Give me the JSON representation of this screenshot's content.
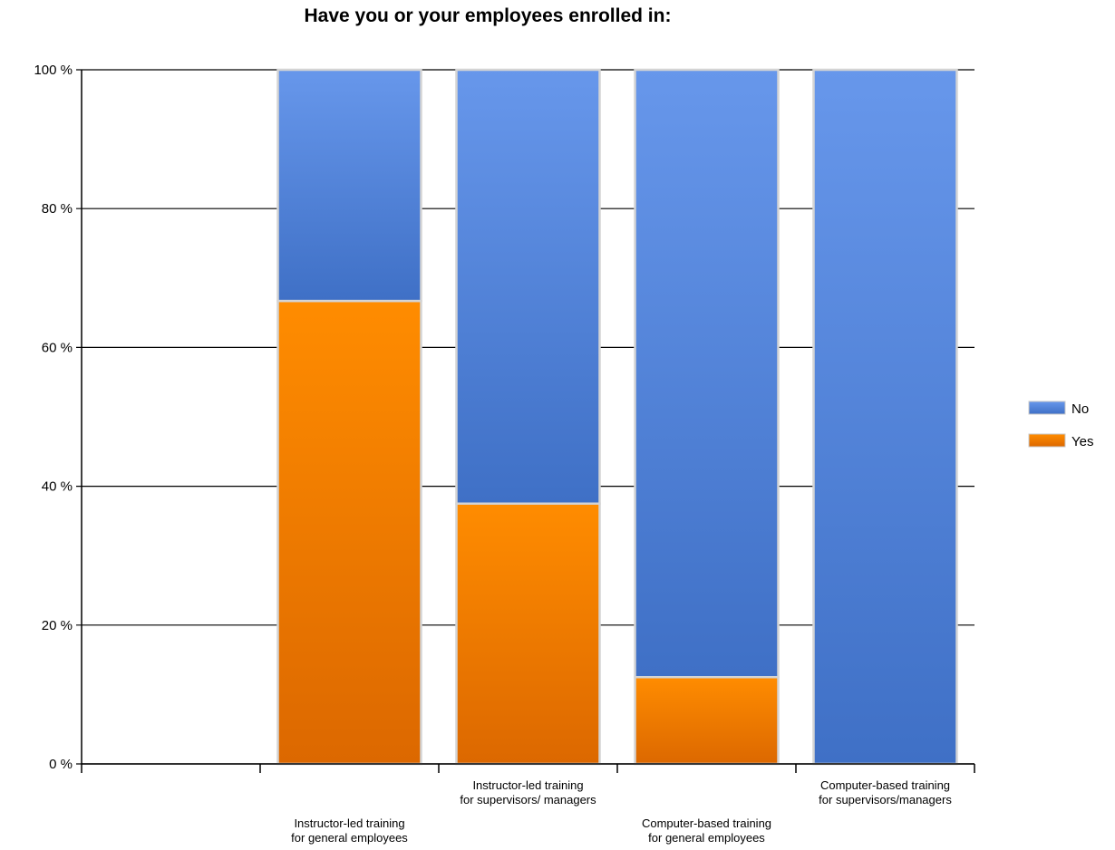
{
  "chart_data": {
    "type": "bar",
    "stacked": true,
    "title": "Have you or your employees enrolled in:",
    "xlabel": "",
    "ylabel": "",
    "ylim": [
      0,
      100
    ],
    "y_ticks": [
      0,
      20,
      40,
      60,
      80,
      100
    ],
    "y_tick_labels": [
      "0 %",
      "20 %",
      "40 %",
      "60 %",
      "80 %",
      "100 %"
    ],
    "categories": [
      [
        "Instructor-led training",
        "for general employees"
      ],
      [
        "Instructor-led training",
        "for supervisors/ managers"
      ],
      [
        "Computer-based training",
        "for general employees"
      ],
      [
        "Computer-based training",
        "for supervisors/managers"
      ]
    ],
    "series": [
      {
        "name": "Yes",
        "values": [
          66.7,
          37.5,
          12.5,
          0
        ],
        "color": "#F68600"
      },
      {
        "name": "No",
        "values": [
          33.3,
          62.5,
          87.5,
          100
        ],
        "color": "#5082D8"
      }
    ],
    "legend": {
      "placement": "right",
      "entries": [
        "No",
        "Yes"
      ]
    },
    "grid": true
  }
}
